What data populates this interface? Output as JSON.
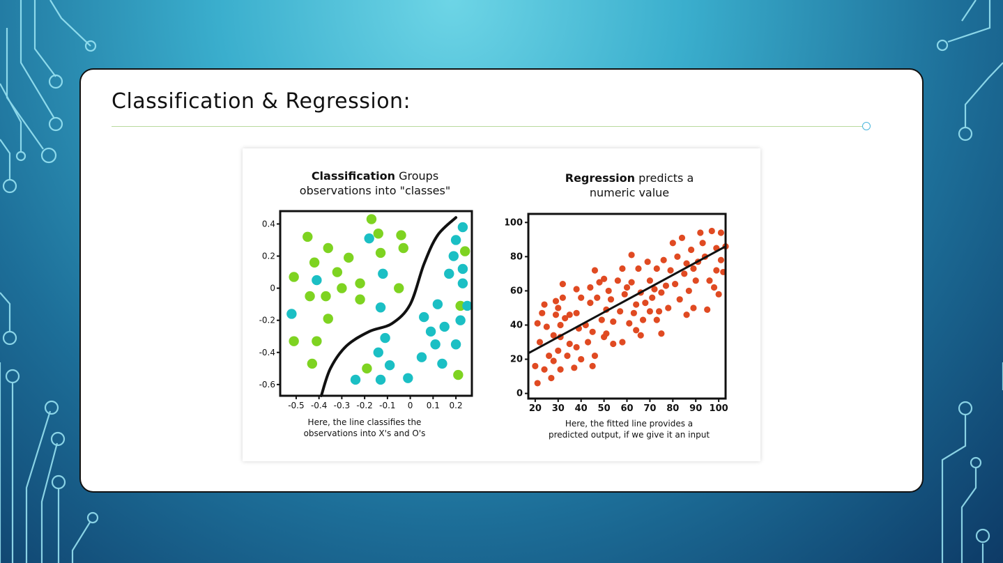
{
  "slide": {
    "title": "Classification & Regression:"
  },
  "colors": {
    "green": "#7ed321",
    "teal": "#1bbfc4",
    "red": "#e04a22",
    "line": "#111111"
  },
  "chart_data": [
    {
      "type": "scatter",
      "title_bold": "Classification",
      "title_rest": " Groups",
      "title_line2": "observations into \"classes\"",
      "caption_line1": "Here, the line classifies the",
      "caption_line2": "observations into X's and O's",
      "xlim": [
        -0.57,
        0.27
      ],
      "ylim": [
        -0.67,
        0.48
      ],
      "x_ticks": [
        -0.5,
        -0.4,
        -0.3,
        -0.2,
        -0.1,
        0,
        0.1,
        0.2
      ],
      "y_ticks": [
        0.4,
        0.2,
        0,
        -0.2,
        -0.4,
        -0.6
      ],
      "decision_boundary": [
        [
          -0.39,
          -0.67
        ],
        [
          -0.35,
          -0.5
        ],
        [
          -0.28,
          -0.36
        ],
        [
          -0.18,
          -0.27
        ],
        [
          -0.08,
          -0.22
        ],
        [
          0.0,
          -0.1
        ],
        [
          0.06,
          0.15
        ],
        [
          0.12,
          0.33
        ],
        [
          0.2,
          0.44
        ]
      ],
      "series": [
        {
          "color": "green",
          "points": [
            [
              -0.45,
              0.32
            ],
            [
              -0.51,
              0.07
            ],
            [
              -0.44,
              -0.05
            ],
            [
              -0.42,
              0.16
            ],
            [
              -0.36,
              0.25
            ],
            [
              -0.37,
              -0.05
            ],
            [
              -0.32,
              0.1
            ],
            [
              -0.3,
              0.0
            ],
            [
              -0.27,
              0.19
            ],
            [
              -0.22,
              0.03
            ],
            [
              -0.22,
              -0.07
            ],
            [
              -0.17,
              0.43
            ],
            [
              -0.14,
              0.34
            ],
            [
              -0.13,
              0.22
            ],
            [
              -0.04,
              0.33
            ],
            [
              -0.03,
              0.25
            ],
            [
              -0.05,
              0.0
            ],
            [
              -0.36,
              -0.19
            ],
            [
              -0.41,
              -0.33
            ],
            [
              -0.51,
              -0.33
            ],
            [
              -0.43,
              -0.47
            ],
            [
              -0.19,
              -0.5
            ],
            [
              0.22,
              -0.11
            ],
            [
              0.21,
              -0.54
            ],
            [
              0.24,
              0.23
            ]
          ]
        },
        {
          "color": "teal",
          "points": [
            [
              -0.18,
              0.31
            ],
            [
              -0.41,
              0.05
            ],
            [
              -0.52,
              -0.16
            ],
            [
              -0.12,
              0.09
            ],
            [
              -0.13,
              -0.12
            ],
            [
              -0.11,
              -0.31
            ],
            [
              -0.14,
              -0.4
            ],
            [
              -0.09,
              -0.48
            ],
            [
              -0.01,
              -0.56
            ],
            [
              -0.13,
              -0.57
            ],
            [
              -0.24,
              -0.57
            ],
            [
              0.05,
              -0.43
            ],
            [
              0.06,
              -0.18
            ],
            [
              0.09,
              -0.27
            ],
            [
              0.12,
              -0.1
            ],
            [
              0.11,
              -0.35
            ],
            [
              0.14,
              -0.47
            ],
            [
              0.15,
              -0.24
            ],
            [
              0.17,
              0.09
            ],
            [
              0.19,
              0.2
            ],
            [
              0.23,
              0.38
            ],
            [
              0.2,
              0.3
            ],
            [
              0.23,
              0.12
            ],
            [
              0.23,
              0.03
            ],
            [
              0.22,
              -0.2
            ],
            [
              0.2,
              -0.35
            ],
            [
              0.25,
              -0.11
            ]
          ]
        }
      ]
    },
    {
      "type": "scatter",
      "title_bold": "Regression",
      "title_rest": " predicts a",
      "title_line2": "numeric value",
      "caption_line1": "Here, the fitted line provides a",
      "caption_line2": "predicted output, if we give it an input",
      "xlim": [
        17,
        103
      ],
      "ylim": [
        -3,
        105
      ],
      "x_ticks": [
        20,
        30,
        40,
        50,
        60,
        70,
        80,
        90,
        100
      ],
      "y_ticks": [
        100,
        80,
        60,
        40,
        20,
        0
      ],
      "fit_line": [
        [
          17,
          23.5
        ],
        [
          103,
          86
        ]
      ],
      "series": [
        {
          "color": "red",
          "points": [
            [
              20,
              16
            ],
            [
              21,
              6
            ],
            [
              21,
              41
            ],
            [
              22,
              30
            ],
            [
              23,
              47
            ],
            [
              24,
              52
            ],
            [
              24,
              14
            ],
            [
              25,
              39
            ],
            [
              26,
              22
            ],
            [
              27,
              9
            ],
            [
              28,
              34
            ],
            [
              28,
              19
            ],
            [
              29,
              54
            ],
            [
              29,
              46
            ],
            [
              30,
              50
            ],
            [
              30,
              25
            ],
            [
              31,
              14
            ],
            [
              31,
              40
            ],
            [
              31,
              33
            ],
            [
              32,
              64
            ],
            [
              32,
              56
            ],
            [
              33,
              44
            ],
            [
              34,
              22
            ],
            [
              35,
              46
            ],
            [
              35,
              29
            ],
            [
              37,
              15
            ],
            [
              38,
              27
            ],
            [
              38,
              47
            ],
            [
              38,
              61
            ],
            [
              39,
              38
            ],
            [
              40,
              56
            ],
            [
              40,
              20
            ],
            [
              42,
              40
            ],
            [
              43,
              30
            ],
            [
              44,
              53
            ],
            [
              44,
              62
            ],
            [
              45,
              36
            ],
            [
              45,
              16
            ],
            [
              46,
              72
            ],
            [
              46,
              22
            ],
            [
              47,
              56
            ],
            [
              48,
              65
            ],
            [
              49,
              43
            ],
            [
              50,
              67
            ],
            [
              50,
              33
            ],
            [
              51,
              49
            ],
            [
              51,
              35
            ],
            [
              52,
              60
            ],
            [
              53,
              55
            ],
            [
              54,
              42
            ],
            [
              54,
              29
            ],
            [
              56,
              66
            ],
            [
              57,
              48
            ],
            [
              58,
              73
            ],
            [
              58,
              30
            ],
            [
              59,
              58
            ],
            [
              60,
              62
            ],
            [
              61,
              41
            ],
            [
              62,
              81
            ],
            [
              62,
              65
            ],
            [
              63,
              47
            ],
            [
              64,
              37
            ],
            [
              64,
              52
            ],
            [
              65,
              73
            ],
            [
              66,
              59
            ],
            [
              66,
              34
            ],
            [
              67,
              43
            ],
            [
              68,
              53
            ],
            [
              69,
              77
            ],
            [
              70,
              66
            ],
            [
              70,
              48
            ],
            [
              71,
              56
            ],
            [
              72,
              61
            ],
            [
              73,
              73
            ],
            [
              73,
              43
            ],
            [
              74,
              48
            ],
            [
              75,
              35
            ],
            [
              75,
              59
            ],
            [
              76,
              78
            ],
            [
              77,
              63
            ],
            [
              78,
              50
            ],
            [
              79,
              72
            ],
            [
              80,
              88
            ],
            [
              81,
              64
            ],
            [
              82,
              80
            ],
            [
              83,
              55
            ],
            [
              84,
              91
            ],
            [
              85,
              70
            ],
            [
              86,
              46
            ],
            [
              86,
              76
            ],
            [
              87,
              60
            ],
            [
              88,
              84
            ],
            [
              89,
              73
            ],
            [
              89,
              50
            ],
            [
              90,
              66
            ],
            [
              91,
              77
            ],
            [
              92,
              94
            ],
            [
              93,
              88
            ],
            [
              94,
              80
            ],
            [
              95,
              49
            ],
            [
              96,
              66
            ],
            [
              97,
              95
            ],
            [
              98,
              62
            ],
            [
              99,
              85
            ],
            [
              99,
              72
            ],
            [
              100,
              58
            ],
            [
              101,
              94
            ],
            [
              101,
              78
            ],
            [
              102,
              71
            ],
            [
              103,
              86
            ]
          ]
        }
      ]
    }
  ]
}
